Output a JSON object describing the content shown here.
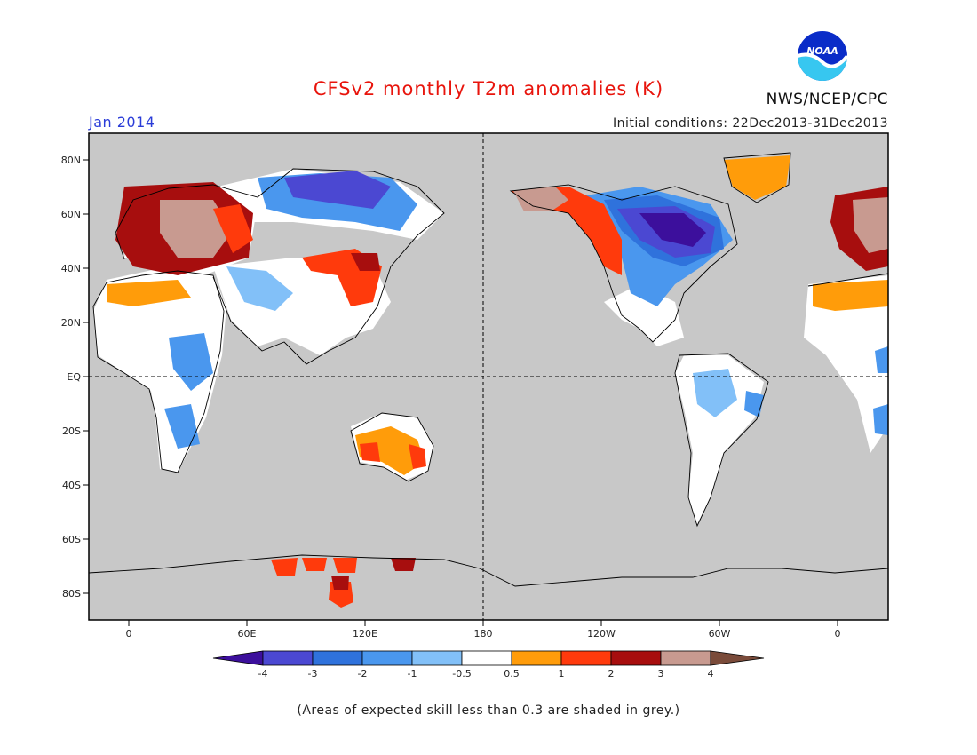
{
  "header": {
    "title": "CFSv2 monthly T2m anomalies (K)",
    "month": "Jan 2014",
    "initial_conditions": "Initial conditions: 22Dec2013-31Dec2013",
    "org": "NWS/NCEP/CPC",
    "logo_text": "NOAA"
  },
  "map": {
    "lat_labels": [
      "80N",
      "60N",
      "40N",
      "20N",
      "EQ",
      "20S",
      "40S",
      "60S",
      "80S"
    ],
    "lon_labels": [
      "0",
      "60E",
      "120E",
      "180",
      "120W",
      "60W",
      "0"
    ],
    "background_color": "#c8c8c8"
  },
  "colorbar": {
    "labels": [
      "-4",
      "-3",
      "-2",
      "-1",
      "-0.5",
      "0.5",
      "1",
      "2",
      "3",
      "4"
    ],
    "colors": [
      "#3c0f9c",
      "#4b48d2",
      "#2f72dc",
      "#4a97ee",
      "#82c0f8",
      "#ffffff",
      "#ff9c0a",
      "#ff3a0c",
      "#a70e0e",
      "#c89a90",
      "#7a4b3a"
    ]
  },
  "footnote": "(Areas of expected skill less than 0.3 are shaded in grey.)"
}
